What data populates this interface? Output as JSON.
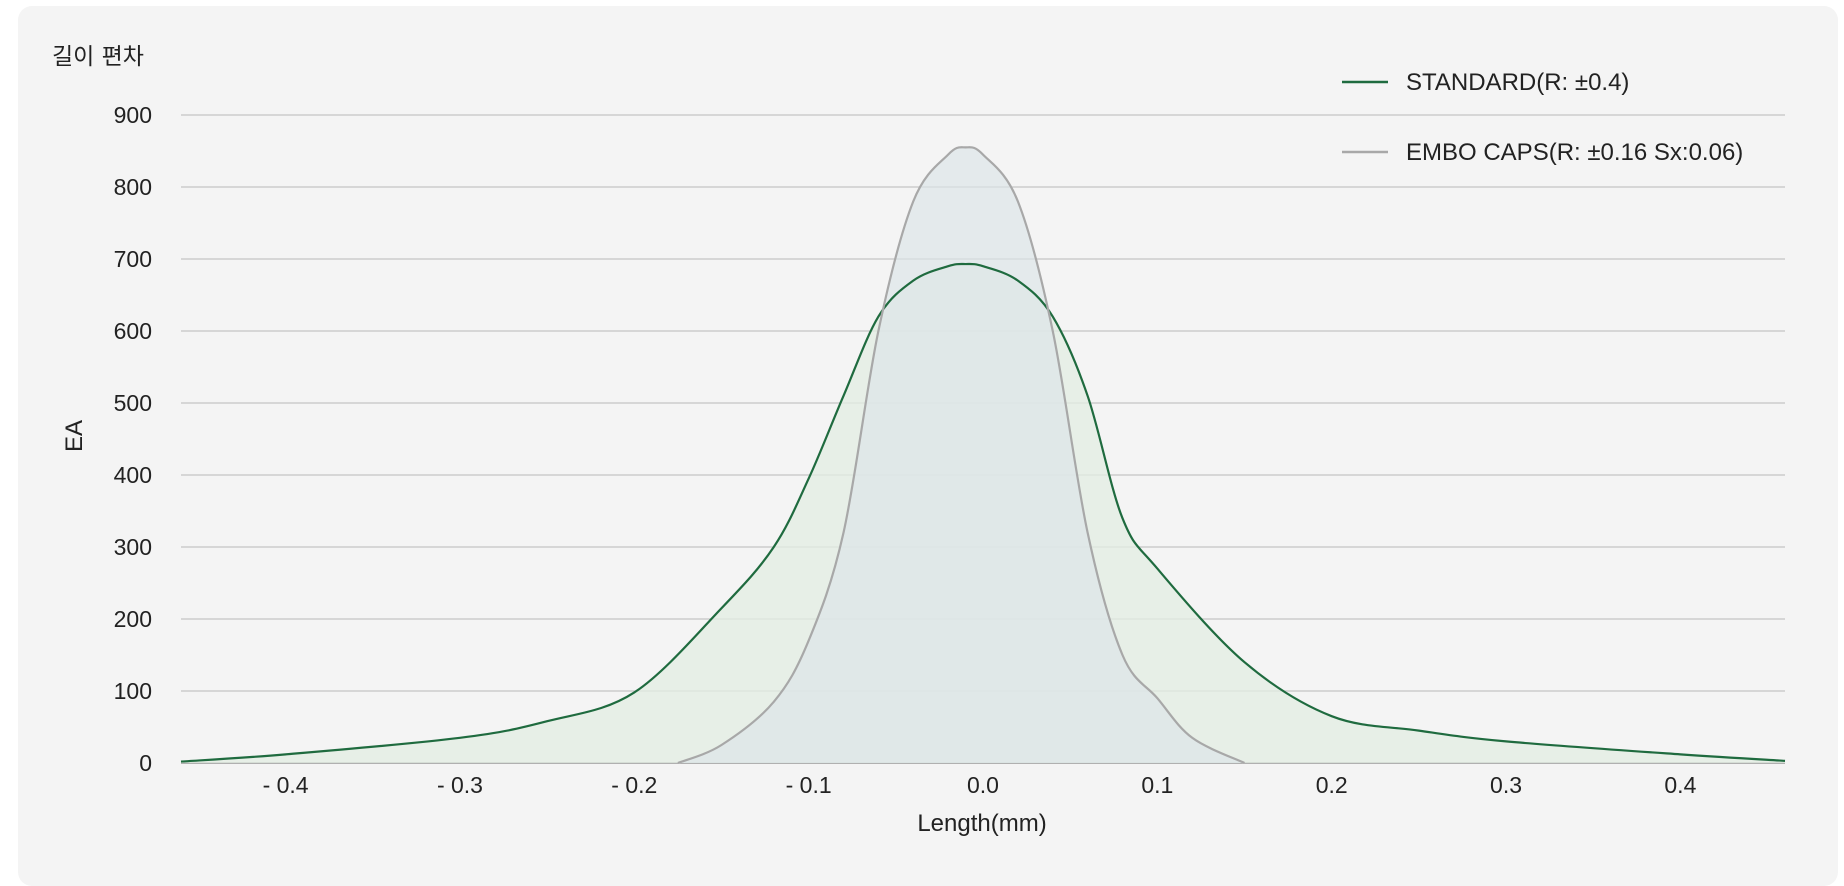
{
  "chart_data": {
    "type": "area",
    "title": "길이 편차",
    "xlabel": "Length(mm)",
    "ylabel": "EA",
    "xlim": [
      -0.46,
      0.46
    ],
    "ylim": [
      0,
      900
    ],
    "yticks": [
      0,
      100,
      200,
      300,
      400,
      500,
      600,
      700,
      800,
      900
    ],
    "xticks": [
      -0.4,
      -0.3,
      -0.2,
      -0.1,
      0.0,
      0.1,
      0.2,
      0.3,
      0.4
    ],
    "ytick_labels": [
      "0",
      "100",
      "200",
      "300",
      "400",
      "500",
      "600",
      "700",
      "800",
      "900"
    ],
    "xtick_labels": [
      "- 0.4",
      "- 0.3",
      "- 0.2",
      "- 0.1",
      "0.0",
      "0.1",
      "0.2",
      "0.3",
      "0.4"
    ],
    "grid": true,
    "legend_position": "top-right",
    "series": [
      {
        "name": "STANDARD(R: ±0.4)",
        "color": "#1f6b3f",
        "fill": "#e3ede3",
        "x": [
          -0.46,
          -0.4,
          -0.3,
          -0.25,
          -0.2,
          -0.15,
          -0.12,
          -0.1,
          -0.08,
          -0.06,
          -0.04,
          -0.02,
          -0.01,
          0.0,
          0.02,
          0.04,
          0.06,
          0.08,
          0.1,
          0.15,
          0.2,
          0.25,
          0.3,
          0.4,
          0.46
        ],
        "y": [
          2,
          12,
          35,
          58,
          98,
          215,
          300,
          395,
          510,
          620,
          670,
          690,
          693,
          690,
          670,
          620,
          510,
          340,
          270,
          140,
          65,
          45,
          30,
          12,
          3
        ]
      },
      {
        "name": "EMBO CAPS(R: ±0.16 Sx:0.06)",
        "color": "#a8a8a8",
        "fill": "#dde5e8",
        "x": [
          -0.175,
          -0.15,
          -0.12,
          -0.1,
          -0.08,
          -0.06,
          -0.04,
          -0.02,
          -0.01,
          0.0,
          0.02,
          0.04,
          0.06,
          0.08,
          0.1,
          0.12,
          0.15
        ],
        "y": [
          0,
          25,
          85,
          170,
          320,
          600,
          780,
          845,
          855,
          845,
          780,
          600,
          320,
          150,
          90,
          35,
          0
        ]
      }
    ]
  }
}
